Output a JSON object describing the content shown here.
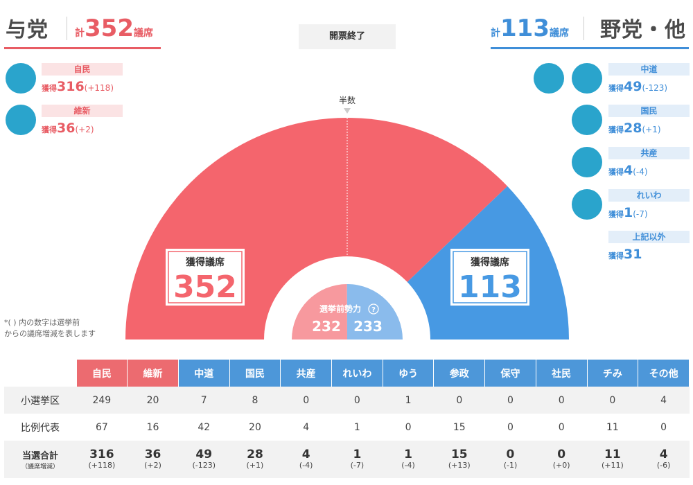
{
  "header": {
    "ruling": {
      "title": "与党",
      "total_prefix": "計",
      "total": "352",
      "total_suffix": "議席"
    },
    "opposition": {
      "title": "野党・他",
      "total_prefix": "計",
      "total": "113",
      "total_suffix": "議席"
    },
    "status": "開票終了"
  },
  "ruling_parties": [
    {
      "name": "自民",
      "label": "獲得",
      "seats": "316",
      "delta": "(+118)"
    },
    {
      "name": "維新",
      "label": "獲得",
      "seats": "36",
      "delta": "(+2)"
    }
  ],
  "opposition_parties": [
    {
      "name": "中道",
      "label": "獲得",
      "seats": "49",
      "delta": "(-123)"
    },
    {
      "name": "国民",
      "label": "獲得",
      "seats": "28",
      "delta": "(+1)"
    },
    {
      "name": "共産",
      "label": "獲得",
      "seats": "4",
      "delta": "(-4)"
    },
    {
      "name": "れいわ",
      "label": "獲得",
      "seats": "1",
      "delta": "(-7)"
    },
    {
      "name": "上記以外",
      "label": "獲得",
      "seats": "31",
      "delta": ""
    }
  ],
  "note": {
    "line1": "*( ) 内の数字は選挙前",
    "line2": "からの議席増減を表します"
  },
  "chart_data": {
    "type": "pie",
    "layout": "semicircle",
    "majority_label": "半数",
    "slices": [
      {
        "name": "与党",
        "value": 352,
        "color": "#f4656d"
      },
      {
        "name": "野党・他",
        "value": 113,
        "color": "#4799e3"
      }
    ],
    "ruling_box": {
      "label": "獲得議席",
      "value": "352"
    },
    "opposition_box": {
      "label": "獲得議席",
      "value": "113"
    },
    "pre_election": {
      "label": "選挙前勢力",
      "help": "?",
      "ruling": 232,
      "opposition": 233,
      "ruling_color": "#f7999e",
      "opposition_color": "#8abbec"
    }
  },
  "table": {
    "headers": [
      {
        "label": "自民",
        "side": "r"
      },
      {
        "label": "維新",
        "side": "r"
      },
      {
        "label": "中道",
        "side": "b"
      },
      {
        "label": "国民",
        "side": "b"
      },
      {
        "label": "共産",
        "side": "b"
      },
      {
        "label": "れいわ",
        "side": "b"
      },
      {
        "label": "ゆう",
        "side": "b"
      },
      {
        "label": "参政",
        "side": "b"
      },
      {
        "label": "保守",
        "side": "b"
      },
      {
        "label": "社民",
        "side": "b"
      },
      {
        "label": "チみ",
        "side": "b"
      },
      {
        "label": "その他",
        "side": "b"
      }
    ],
    "rows": [
      {
        "label": "小選挙区",
        "values": [
          "249",
          "20",
          "7",
          "8",
          "0",
          "0",
          "1",
          "0",
          "0",
          "0",
          "0",
          "4"
        ]
      },
      {
        "label": "比例代表",
        "values": [
          "67",
          "16",
          "42",
          "20",
          "4",
          "1",
          "0",
          "15",
          "0",
          "0",
          "11",
          "0"
        ]
      }
    ],
    "total_row": {
      "label": "当選合計",
      "sublabel": "（議席増減）",
      "values": [
        "316",
        "36",
        "49",
        "28",
        "4",
        "1",
        "1",
        "15",
        "0",
        "0",
        "11",
        "4"
      ],
      "deltas": [
        "(+118)",
        "(+2)",
        "(-123)",
        "(+1)",
        "(-4)",
        "(-7)",
        "(-4)",
        "(+13)",
        "(-1)",
        "(+0)",
        "(+11)",
        "(-6)"
      ]
    }
  }
}
